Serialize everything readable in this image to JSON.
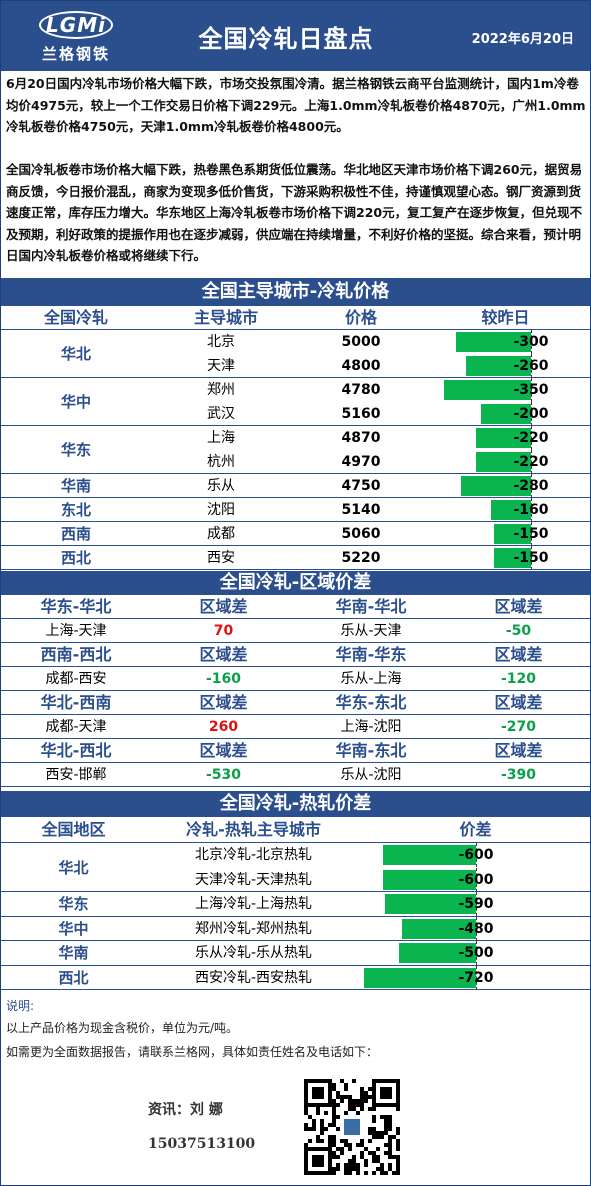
{
  "header": {
    "logo_text": "LGMi",
    "logo_cn": "兰格钢铁",
    "title": "全国冷轧日盘点",
    "date": "2022年6月20日"
  },
  "paragraphs": [
    "6月20日国内冷轧市场价格大幅下跌，市场交投氛围冷清。据兰格钢铁云商平台监测统计，国内1m冷卷均价4975元，较上一个工作交易日价格下调229元。上海1.0mm冷轧板卷价格4870元，广州1.0mm冷轧板卷价格4750元，天津1.0mm冷轧板卷价格4800元。",
    "全国冷轧板卷市场价格大幅下跌，热卷黑色系期货低位震荡。华北地区天津市场价格下调260元，据贸易商反馈，今日报价混乱，商家为变现多低价售货，下游采购积极性不佳，持谨慎观望心态。钢厂资源到货速度正常，库存压力增大。华东地区上海冷轧板卷市场价格下调220元，复工复产在逐步恢复，但兑现不及预期，利好政策的提振作用也在逐步减弱，供应端在持续增量，不利好价格的坚挺。综合来看，预计明日国内冷轧板卷价格或将继续下行。"
  ],
  "section1": {
    "title": "全国主导城市-冷轧价格",
    "headers": [
      "全国冷轧",
      "主导城市",
      "价格",
      "较昨日"
    ],
    "groups": [
      {
        "region": "华北",
        "rows": [
          {
            "city": "北京",
            "price": "5000",
            "change": -300
          },
          {
            "city": "天津",
            "price": "4800",
            "change": -260
          }
        ]
      },
      {
        "region": "华中",
        "rows": [
          {
            "city": "郑州",
            "price": "4780",
            "change": -350
          },
          {
            "city": "武汉",
            "price": "5160",
            "change": -200
          }
        ]
      },
      {
        "region": "华东",
        "rows": [
          {
            "city": "上海",
            "price": "4870",
            "change": -220
          },
          {
            "city": "杭州",
            "price": "4970",
            "change": -220
          }
        ]
      },
      {
        "region": "华南",
        "rows": [
          {
            "city": "乐从",
            "price": "4750",
            "change": -280
          }
        ]
      },
      {
        "region": "东北",
        "rows": [
          {
            "city": "沈阳",
            "price": "5140",
            "change": -160
          }
        ]
      },
      {
        "region": "西南",
        "rows": [
          {
            "city": "成都",
            "price": "5060",
            "change": -150
          }
        ]
      },
      {
        "region": "西北",
        "rows": [
          {
            "city": "西安",
            "price": "5220",
            "change": -150
          }
        ]
      }
    ]
  },
  "section2": {
    "title": "全国冷轧-区域价差",
    "diff_label": "区域差",
    "blocks": [
      {
        "left": {
          "title": "华东-华北",
          "pair": "上海-天津",
          "value": "70",
          "color": "red"
        },
        "right": {
          "title": "华南-华北",
          "pair": "乐从-天津",
          "value": "-50",
          "color": "green"
        }
      },
      {
        "left": {
          "title": "西南-西北",
          "pair": "成都-西安",
          "value": "-160",
          "color": "green"
        },
        "right": {
          "title": "华南-华东",
          "pair": "乐从-上海",
          "value": "-120",
          "color": "green"
        }
      },
      {
        "left": {
          "title": "华北-西南",
          "pair": "成都-天津",
          "value": "260",
          "color": "red"
        },
        "right": {
          "title": "华东-东北",
          "pair": "上海-沈阳",
          "value": "-270",
          "color": "green"
        }
      },
      {
        "left": {
          "title": "华北-西北",
          "pair": "西安-邯郸",
          "value": "-530",
          "color": "green"
        },
        "right": {
          "title": "华南-东北",
          "pair": "乐从-沈阳",
          "value": "-390",
          "color": "green"
        }
      }
    ]
  },
  "section3": {
    "title": "全国冷轧-热轧价差",
    "headers": [
      "全国地区",
      "冷轧-热轧主导城市",
      "价差"
    ],
    "groups": [
      {
        "region": "华北",
        "rows": [
          {
            "pair": "北京冷轧-北京热轧",
            "value": -600
          },
          {
            "pair": "天津冷轧-天津热轧",
            "value": -600
          }
        ]
      },
      {
        "region": "华东",
        "rows": [
          {
            "pair": "上海冷轧-上海热轧",
            "value": -590
          }
        ]
      },
      {
        "region": "华中",
        "rows": [
          {
            "pair": "郑州冷轧-郑州热轧",
            "value": -480
          }
        ]
      },
      {
        "region": "华南",
        "rows": [
          {
            "pair": "乐从冷轧-乐从热轧",
            "value": -500
          }
        ]
      },
      {
        "region": "西北",
        "rows": [
          {
            "pair": "西安冷轧-西安热轧",
            "value": -720
          }
        ]
      }
    ]
  },
  "footer": {
    "note_label": "说明:",
    "note1": "以上产品价格为现金含税价，单位为元/吨。",
    "note2": "如需更为全面数据报告，请联系兰格网，具体如责任姓名及电话如下：",
    "contact_name": "资讯：刘 娜",
    "contact_phone": "15037513100"
  },
  "colors": {
    "header_blue": "#2b4e8c",
    "bar_green": "#0ab44e",
    "positive_red": "#e01010",
    "negative_green": "#0aa04a"
  }
}
